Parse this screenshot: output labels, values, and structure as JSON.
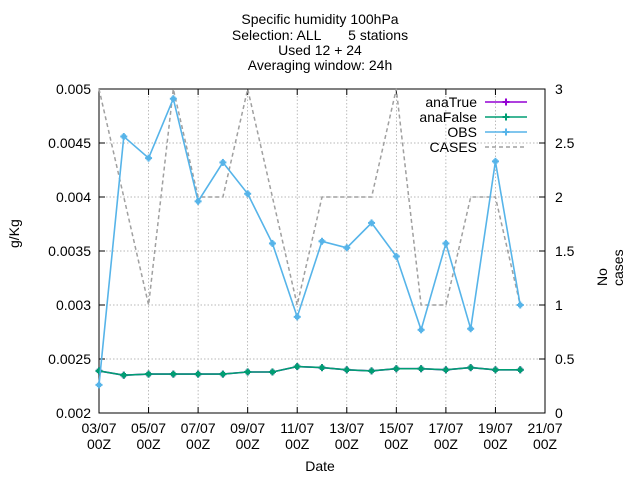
{
  "chart_data": {
    "type": "line",
    "title_lines": [
      "Specific humidity 100hPa",
      "Selection: ALL       5 stations",
      "Used 12 + 24",
      "Averaging window: 24h"
    ],
    "xlabel": "Date",
    "ylabel": "g/Kg",
    "y2label": "No cases",
    "x": [
      "03/07 00Z",
      "04/07 00Z",
      "05/07 00Z",
      "06/07 00Z",
      "07/07 00Z",
      "08/07 00Z",
      "09/07 00Z",
      "10/07 00Z",
      "11/07 00Z",
      "12/07 00Z",
      "13/07 00Z",
      "14/07 00Z",
      "15/07 00Z",
      "16/07 00Z",
      "17/07 00Z",
      "18/07 00Z",
      "19/07 00Z",
      "20/07 00Z"
    ],
    "x_tick_labels": [
      [
        "03/07",
        "00Z"
      ],
      [
        "05/07",
        "00Z"
      ],
      [
        "07/07",
        "00Z"
      ],
      [
        "09/07",
        "00Z"
      ],
      [
        "11/07",
        "00Z"
      ],
      [
        "13/07",
        "00Z"
      ],
      [
        "15/07",
        "00Z"
      ],
      [
        "17/07",
        "00Z"
      ],
      [
        "19/07",
        "00Z"
      ],
      [
        "21/07",
        "00Z"
      ]
    ],
    "ylim": [
      0.002,
      0.005
    ],
    "y_ticks": [
      "0.002",
      "0.0025",
      "0.003",
      "0.0035",
      "0.004",
      "0.0045",
      "0.005"
    ],
    "y2lim": [
      0,
      3
    ],
    "y2_ticks": [
      "0",
      "0.5",
      "1",
      "1.5",
      "2",
      "2.5",
      "3"
    ],
    "grid": true,
    "legend_position": "top-right",
    "series": [
      {
        "name": "anaTrue",
        "axis": "y1",
        "color": "#9400d3",
        "marker": "cross",
        "values": [
          0.00239,
          0.00235,
          0.00236,
          0.00236,
          0.00236,
          0.00236,
          0.00238,
          0.00238,
          0.00243,
          0.00242,
          0.0024,
          0.00239,
          0.00241,
          0.00241,
          0.0024,
          0.00242,
          0.0024,
          0.0024
        ]
      },
      {
        "name": "anaFalse",
        "axis": "y1",
        "color": "#009e73",
        "marker": "cross",
        "values": [
          0.00239,
          0.00235,
          0.00236,
          0.00236,
          0.00236,
          0.00236,
          0.00238,
          0.00238,
          0.00243,
          0.00242,
          0.0024,
          0.00239,
          0.00241,
          0.00241,
          0.0024,
          0.00242,
          0.0024,
          0.0024
        ]
      },
      {
        "name": "OBS",
        "axis": "y1",
        "color": "#56b4e9",
        "marker": "cross",
        "values": [
          0.00226,
          0.00456,
          0.00436,
          0.00491,
          0.00396,
          0.00432,
          0.00403,
          0.00357,
          0.00289,
          0.00359,
          0.00353,
          0.00376,
          0.00345,
          0.00277,
          0.00357,
          0.00278,
          0.00433,
          0.003
        ]
      },
      {
        "name": "CASES",
        "axis": "y2",
        "color": "#a0a0a0",
        "marker": "none",
        "dash": true,
        "values": [
          3,
          2,
          1,
          3,
          2,
          2,
          3,
          2,
          1,
          2,
          2,
          2,
          3,
          1,
          1,
          2,
          2,
          1
        ]
      }
    ]
  }
}
